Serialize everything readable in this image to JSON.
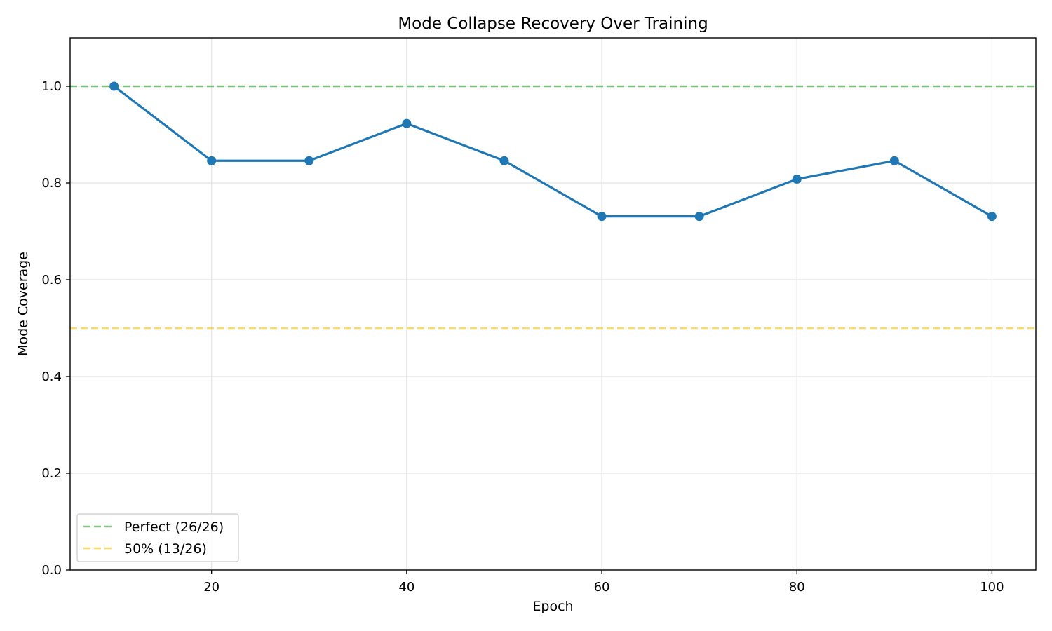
{
  "chart_data": {
    "type": "line",
    "title": "Mode Collapse Recovery Over Training",
    "xlabel": "Epoch",
    "ylabel": "Mode Coverage",
    "xlim": [
      5.5,
      104.5
    ],
    "ylim": [
      0.0,
      1.1
    ],
    "xticks": [
      20,
      40,
      60,
      80,
      100
    ],
    "yticks": [
      0.0,
      0.2,
      0.4,
      0.6,
      0.8,
      1.0
    ],
    "xtick_labels": [
      "20",
      "40",
      "60",
      "80",
      "100"
    ],
    "ytick_labels": [
      "0.0",
      "0.2",
      "0.4",
      "0.6",
      "0.8",
      "1.0"
    ],
    "grid": true,
    "legend_position": "lower-left",
    "series": [
      {
        "color": "#1f77b4",
        "marker": "circle",
        "x": [
          10,
          20,
          30,
          40,
          50,
          60,
          70,
          80,
          90,
          100
        ],
        "y": [
          1.0,
          0.846,
          0.846,
          0.923,
          0.846,
          0.731,
          0.731,
          0.808,
          0.846,
          0.731
        ]
      }
    ],
    "reference_lines": [
      {
        "name": "Perfect (26/26)",
        "y": 1.0,
        "color": "#2ca02c",
        "style": "dashed"
      },
      {
        "name": "50% (13/26)",
        "y": 0.5,
        "color": "#ffbf00",
        "style": "dashed"
      }
    ]
  }
}
